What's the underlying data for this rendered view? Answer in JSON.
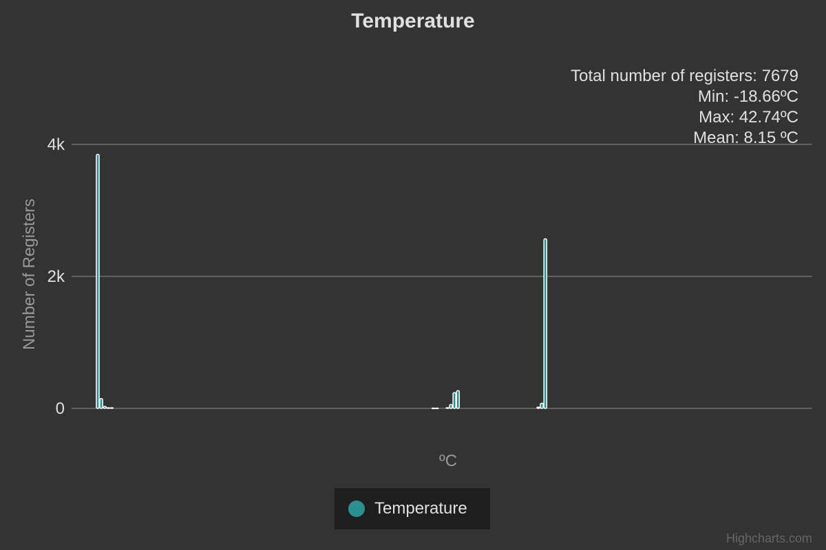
{
  "chart_data": {
    "type": "bar",
    "title": "Temperature",
    "xlabel": "ºC",
    "ylabel": "Number of Registers",
    "ylim": [
      0,
      4000
    ],
    "yticks": [
      "0",
      "2k",
      "4k"
    ],
    "yticks_values": [
      0,
      2000,
      4000
    ],
    "grid": true,
    "legend_position": "bottom-center",
    "series": [
      {
        "name": "Temperature",
        "color": "#2b908f",
        "values": [
          3850,
          150,
          30,
          10,
          10,
          0,
          0,
          0,
          0,
          0,
          0,
          0,
          0,
          0,
          0,
          0,
          0,
          0,
          0,
          0,
          0,
          0,
          0,
          0,
          0,
          0,
          0,
          0,
          0,
          0,
          0,
          0,
          0,
          0,
          0,
          0,
          0,
          0,
          0,
          0,
          0,
          0,
          0,
          0,
          0,
          0,
          0,
          0,
          0,
          0,
          0,
          0,
          0,
          0,
          0,
          0,
          0,
          0,
          0,
          0,
          0,
          0,
          0,
          0,
          0,
          0,
          0,
          0,
          0,
          0,
          0,
          0,
          0,
          0,
          0,
          0,
          0,
          0,
          0,
          0,
          0,
          0,
          0,
          0,
          0,
          0,
          0,
          0,
          0,
          0,
          0,
          0,
          0,
          0,
          0,
          0,
          5,
          5,
          0,
          0,
          10,
          60,
          240,
          270,
          0,
          0,
          0,
          0,
          0,
          0,
          0,
          0,
          0,
          0,
          0,
          0,
          0,
          0,
          0,
          0,
          0,
          0,
          0,
          0,
          0,
          0,
          20,
          80,
          2570
        ]
      }
    ],
    "stats": {
      "total": "Total number of registers: 7679",
      "min": "Min: -18.66ºC",
      "max": "Max: 42.74ºC",
      "mean": "Mean: 8.15 ºC"
    }
  },
  "credits": "Highcharts.com"
}
